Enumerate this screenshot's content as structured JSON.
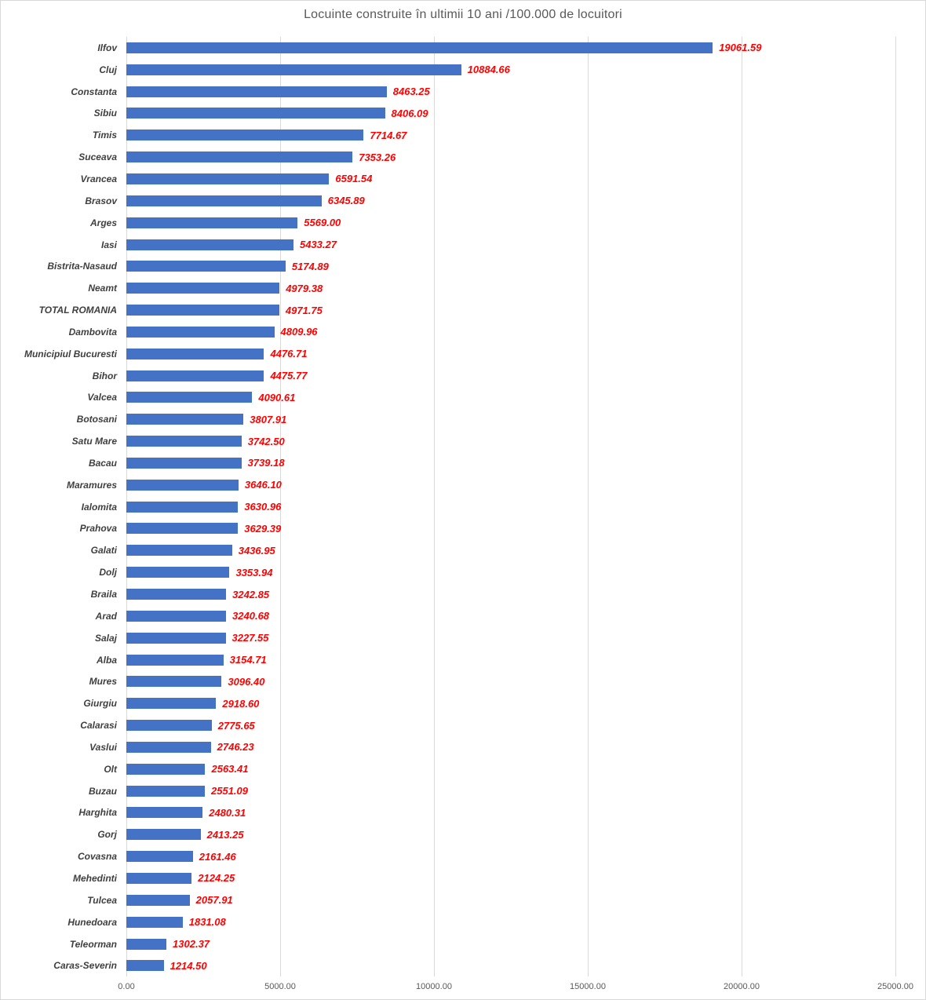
{
  "chart_data": {
    "type": "bar",
    "orientation": "horizontal",
    "title": "Locuinte construite în ultimii 10 ani /100.000 de locuitori",
    "categories": [
      "Ilfov",
      "Cluj",
      "Constanta",
      "Sibiu",
      "Timis",
      "Suceava",
      "Vrancea",
      "Brasov",
      "Arges",
      "Iasi",
      "Bistrita-Nasaud",
      "Neamt",
      "TOTAL ROMANIA",
      "Dambovita",
      "Municipiul Bucuresti",
      "Bihor",
      "Valcea",
      "Botosani",
      "Satu Mare",
      "Bacau",
      "Maramures",
      "Ialomita",
      "Prahova",
      "Galati",
      "Dolj",
      "Braila",
      "Arad",
      "Salaj",
      "Alba",
      "Mures",
      "Giurgiu",
      "Calarasi",
      "Vaslui",
      "Olt",
      "Buzau",
      "Harghita",
      "Gorj",
      "Covasna",
      "Mehedinti",
      "Tulcea",
      "Hunedoara",
      "Teleorman",
      "Caras-Severin"
    ],
    "values": [
      19061.59,
      10884.66,
      8463.25,
      8406.09,
      7714.67,
      7353.26,
      6591.54,
      6345.89,
      5569.0,
      5433.27,
      5174.89,
      4979.38,
      4971.75,
      4809.96,
      4476.71,
      4475.77,
      4090.61,
      3807.91,
      3742.5,
      3739.18,
      3646.1,
      3630.96,
      3629.39,
      3436.95,
      3353.94,
      3242.85,
      3240.68,
      3227.55,
      3154.71,
      3096.4,
      2918.6,
      2775.65,
      2746.23,
      2563.41,
      2551.09,
      2480.31,
      2413.25,
      2161.46,
      2124.25,
      2057.91,
      1831.08,
      1302.37,
      1214.5
    ],
    "xlabel": "",
    "ylabel": "",
    "xlim": [
      0,
      25000
    ],
    "x_tick_labels": [
      "0.00",
      "5000.00",
      "10000.00",
      "15000.00",
      "20000.00",
      "25000.00"
    ],
    "grid": "vertical gridlines",
    "legend": "none",
    "value_label_format": "2 decimals, red bold italic at bar end"
  },
  "colors": {
    "bar": "#4472c4",
    "value_label": "#ff0000",
    "category_label": "#3f3f3f",
    "axis_tick_label": "#595959",
    "gridline": "#d9d9d9",
    "title": "#595959",
    "background": "#ffffff",
    "chart_border": "#d9d9d9"
  }
}
